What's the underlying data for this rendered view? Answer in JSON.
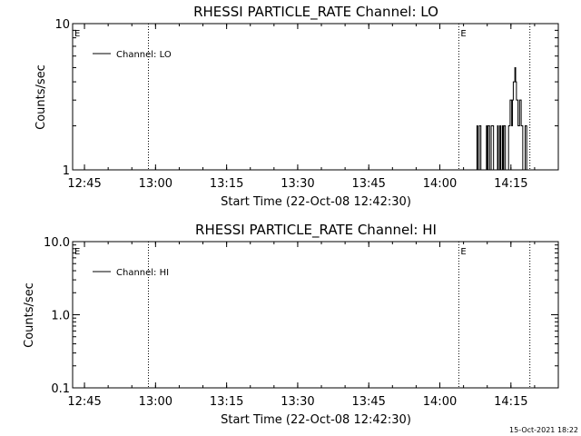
{
  "chart_data": [
    {
      "type": "line",
      "title": "RHESSI PARTICLE_RATE Channel: LO",
      "xlabel": "Start Time (22-Oct-08 12:42:30)",
      "ylabel": "Counts/sec",
      "y_scale": "log",
      "ylim": [
        1,
        10
      ],
      "y_ticks": [
        "1",
        "10"
      ],
      "x_ticks": [
        "12:45",
        "13:00",
        "13:15",
        "13:30",
        "13:45",
        "14:00",
        "14:15"
      ],
      "xlim": [
        "12:42:30",
        "14:25:00"
      ],
      "legend": {
        "placement": "top-left",
        "entries": [
          "Channel: LO"
        ]
      },
      "markers": [
        {
          "time": "12:42:30",
          "label": "E",
          "dotted": false
        },
        {
          "time": "12:58:30",
          "label": "",
          "dotted": true
        },
        {
          "time": "14:04:00",
          "label": "E",
          "dotted": true
        },
        {
          "time": "14:19:00",
          "label": "",
          "dotted": true
        }
      ],
      "series": [
        {
          "name": "Channel: LO",
          "x": [
            "14:06:20",
            "14:06:30",
            "14:06:40",
            "14:06:50",
            "14:07:00",
            "14:07:10",
            "14:07:20",
            "14:07:30",
            "14:07:40",
            "14:07:50",
            "14:08:00",
            "14:08:10",
            "14:08:20",
            "14:08:30",
            "14:08:40",
            "14:08:50",
            "14:09:00",
            "14:09:10",
            "14:09:20",
            "14:09:30",
            "14:09:40",
            "14:09:50",
            "14:10:00",
            "14:10:10",
            "14:10:20",
            "14:10:30",
            "14:10:40",
            "14:10:50",
            "14:11:00",
            "14:11:10",
            "14:11:20",
            "14:11:30",
            "14:11:40",
            "14:11:50",
            "14:12:00",
            "14:12:10",
            "14:12:20",
            "14:12:30",
            "14:12:40",
            "14:12:50",
            "14:13:00",
            "14:13:10",
            "14:13:20",
            "14:13:30",
            "14:13:40",
            "14:13:50",
            "14:14:00",
            "14:14:10",
            "14:14:20",
            "14:14:30",
            "14:14:40",
            "14:14:50",
            "14:15:00",
            "14:15:10",
            "14:15:20",
            "14:15:30",
            "14:15:40",
            "14:15:50",
            "14:16:00",
            "14:16:10",
            "14:16:20",
            "14:16:30",
            "14:16:40",
            "14:16:50",
            "14:17:00",
            "14:17:10",
            "14:17:20",
            "14:17:30",
            "14:17:40",
            "14:17:50",
            "14:18:00",
            "14:18:10",
            "14:18:20",
            "14:18:30"
          ],
          "y": [
            1,
            1,
            1,
            1,
            1,
            1,
            1,
            1,
            1,
            2,
            1,
            1,
            2,
            2,
            1,
            1,
            1,
            1,
            1,
            1,
            1,
            2,
            1,
            2,
            2,
            1,
            1,
            2,
            2,
            2,
            1,
            1,
            1,
            1,
            1,
            2,
            1,
            1,
            2,
            1,
            1,
            2,
            1,
            2,
            2,
            1,
            1,
            1,
            1,
            2,
            2,
            3,
            3,
            2,
            3,
            4,
            4,
            5,
            4,
            3,
            3,
            2,
            2,
            3,
            3,
            2,
            2,
            1,
            1,
            1,
            2,
            2,
            1,
            1
          ]
        }
      ]
    },
    {
      "type": "line",
      "title": "RHESSI PARTICLE_RATE Channel: HI",
      "xlabel": "Start Time (22-Oct-08 12:42:30)",
      "ylabel": "Counts/sec",
      "y_scale": "log",
      "ylim": [
        0.1,
        10
      ],
      "y_ticks": [
        "0.1",
        "1.0",
        "10.0"
      ],
      "x_ticks": [
        "12:45",
        "13:00",
        "13:15",
        "13:30",
        "13:45",
        "14:00",
        "14:15"
      ],
      "xlim": [
        "12:42:30",
        "14:25:00"
      ],
      "legend": {
        "placement": "top-left",
        "entries": [
          "Channel: HI"
        ]
      },
      "markers": [
        {
          "time": "12:42:30",
          "label": "E",
          "dotted": false
        },
        {
          "time": "12:58:30",
          "label": "",
          "dotted": true
        },
        {
          "time": "14:04:00",
          "label": "E",
          "dotted": true
        },
        {
          "time": "14:19:00",
          "label": "",
          "dotted": true
        }
      ],
      "series": [
        {
          "name": "Channel: HI",
          "x": [],
          "y": []
        }
      ]
    }
  ],
  "footer": {
    "timestamp": "15-Oct-2021 18:22"
  }
}
